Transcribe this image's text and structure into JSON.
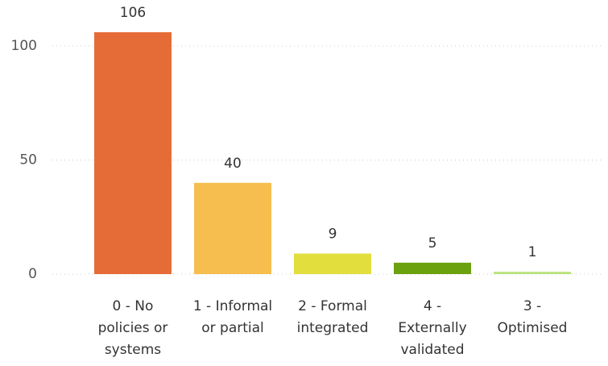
{
  "chart_data": {
    "type": "bar",
    "categories": [
      "0 - No policies or systems",
      "1 - Informal or partial",
      "2 - Formal integrated",
      "4 - Externally validated",
      "3 - Optimised"
    ],
    "values": [
      106,
      40,
      9,
      5,
      1
    ],
    "colors": [
      "#E66C37",
      "#F5BE4F",
      "#E1DE3E",
      "#6BA10E",
      "#B9E27C"
    ],
    "ylim": [
      0,
      106
    ],
    "yticks": [
      0,
      50,
      100
    ],
    "grid": true
  }
}
